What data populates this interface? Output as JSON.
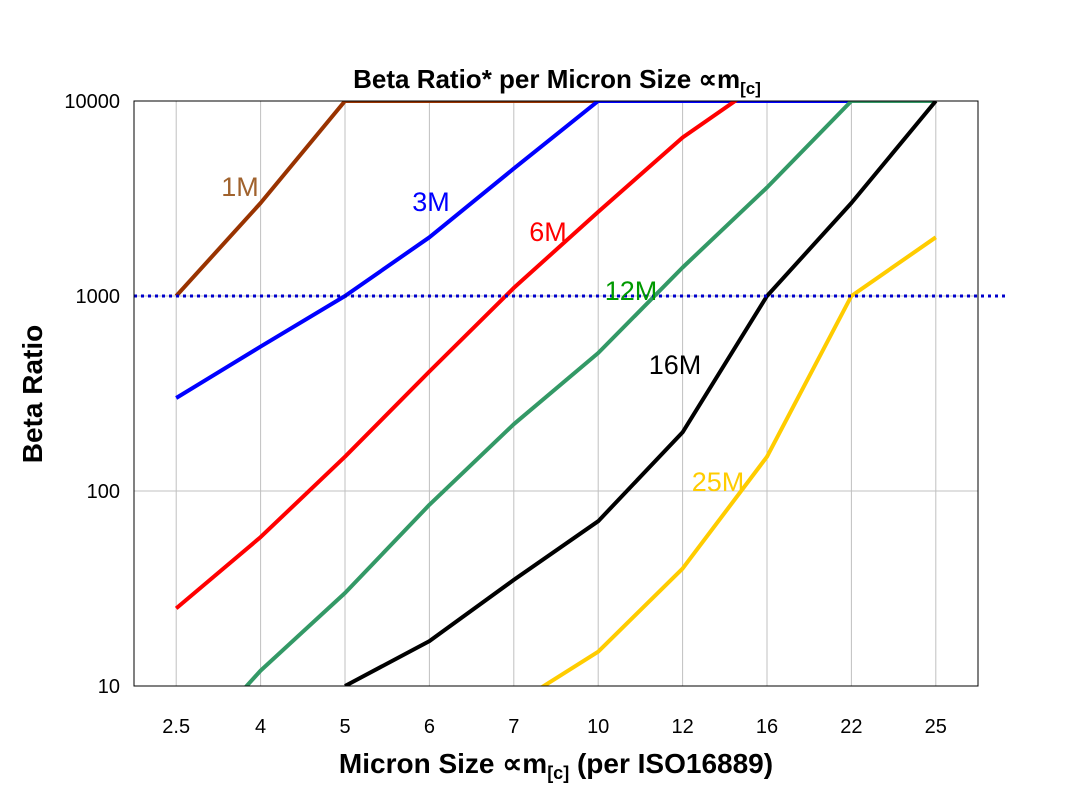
{
  "chart_data": {
    "type": "line",
    "title": "Beta Ratio* per Micron Size ∝m",
    "title_subscript": "[c]",
    "xlabel": "Micron Size ∝m",
    "xlabel_subscript": "[c]",
    "xlabel_suffix": " (per ISO16889)",
    "ylabel": "Beta Ratio",
    "y_scale": "log",
    "ylim": [
      10,
      10000
    ],
    "y_ticks": [
      "10",
      "100",
      "1000",
      "10000"
    ],
    "categories": [
      "2.5",
      "4",
      "5",
      "6",
      "7",
      "10",
      "12",
      "16",
      "22",
      "25"
    ],
    "grid": true,
    "reference_line": {
      "value": 1000,
      "style": "dotted",
      "color": "#0000CC"
    },
    "series": [
      {
        "name": "1M",
        "color": "#993300",
        "label_color": "#A0622D",
        "values": [
          1000,
          3000,
          10000,
          10000,
          10000,
          10000,
          null,
          null,
          null,
          null
        ]
      },
      {
        "name": "3M",
        "color": "#0000FF",
        "label_color": "#0000FF",
        "values": [
          300,
          550,
          1000,
          2000,
          4500,
          10000,
          10000,
          10000,
          10000,
          null
        ]
      },
      {
        "name": "6M",
        "color": "#FF0000",
        "label_color": "#FF0000",
        "values": [
          25,
          58,
          150,
          410,
          1100,
          2700,
          6500,
          13000,
          null,
          null
        ]
      },
      {
        "name": "12M",
        "color": "#339966",
        "label_color": "#009900",
        "values": [
          4,
          12,
          30,
          85,
          220,
          510,
          1400,
          3600,
          10000,
          10000
        ]
      },
      {
        "name": "16M",
        "color": "#000000",
        "label_color": "#000000",
        "values": [
          null,
          null,
          10,
          17,
          35,
          70,
          200,
          1000,
          3000,
          10000
        ]
      },
      {
        "name": "25M",
        "color": "#FFCC00",
        "label_color": "#FFCC00",
        "values": [
          null,
          null,
          null,
          null,
          8,
          15,
          40,
          150,
          1000,
          2000
        ]
      }
    ]
  }
}
